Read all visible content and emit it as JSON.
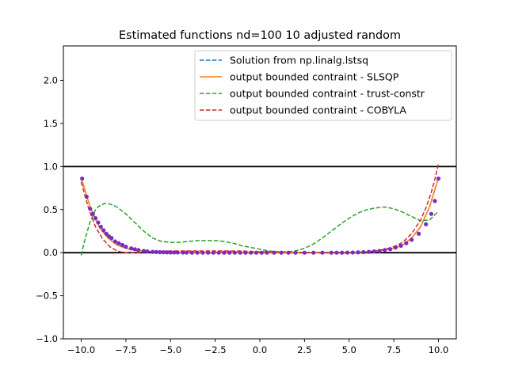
{
  "chart_data": {
    "type": "line",
    "title": "Estimated functions nd=100 10 adjusted random",
    "xlabel": "",
    "ylabel": "",
    "xlim": [
      -11.0,
      11.0
    ],
    "ylim": [
      -1.0,
      2.4
    ],
    "x_ticks": [
      -10.0,
      -7.5,
      -5.0,
      -2.5,
      0.0,
      2.5,
      5.0,
      7.5,
      10.0
    ],
    "x_tick_labels": [
      "−10.0",
      "−7.5",
      "−5.0",
      "−2.5",
      "0.0",
      "2.5",
      "5.0",
      "7.5",
      "10.0"
    ],
    "y_ticks": [
      -1.0,
      -0.5,
      0.0,
      0.5,
      1.0,
      1.5,
      2.0
    ],
    "y_tick_labels": [
      "−1.0",
      "−0.5",
      "0.0",
      "0.5",
      "1.0",
      "1.5",
      "2.0"
    ],
    "grid": false,
    "legend_position": "top-right",
    "reference_lines": [
      1.0,
      0.0
    ],
    "series": [
      {
        "name": "Solution from np.linalg.lstsq",
        "style": "dashed",
        "color": "#1f77b4",
        "x": [
          -10,
          -9.5,
          -9,
          -8.5,
          -8,
          -7.5,
          -7,
          -6.5,
          -6,
          -5,
          -4,
          -3,
          -2,
          -1,
          0,
          1,
          2,
          3,
          4,
          5,
          6,
          6.5,
          7,
          7.5,
          8,
          8.5,
          9,
          9.5,
          10
        ],
        "y": [
          0.87,
          0.53,
          0.3,
          0.17,
          0.09,
          0.05,
          0.03,
          0.02,
          0.01,
          0.0,
          0.0,
          0.0,
          0.0,
          0.0,
          0.0,
          0.0,
          0.0,
          0.0,
          0.0,
          0.0,
          0.01,
          0.02,
          0.03,
          0.05,
          0.09,
          0.17,
          0.3,
          0.53,
          0.87
        ]
      },
      {
        "name": "output bounded contraint - SLSQP",
        "style": "solid",
        "color": "#ff7f0e",
        "x": [
          -10,
          -9.5,
          -9,
          -8.5,
          -8,
          -7.5,
          -7,
          -6.5,
          -6,
          -5,
          -4,
          -3,
          -2,
          -1,
          0,
          1,
          2,
          3,
          4,
          5,
          6,
          6.5,
          7,
          7.5,
          8,
          8.5,
          9,
          9.5,
          10
        ],
        "y": [
          0.87,
          0.53,
          0.3,
          0.17,
          0.09,
          0.05,
          0.03,
          0.02,
          0.01,
          0.0,
          0.0,
          0.0,
          0.0,
          0.0,
          0.0,
          0.0,
          0.0,
          0.0,
          0.0,
          0.0,
          0.01,
          0.02,
          0.03,
          0.05,
          0.09,
          0.17,
          0.3,
          0.53,
          0.87
        ]
      },
      {
        "name": "output bounded contraint - trust-constr",
        "style": "dashed",
        "color": "#2ca02c",
        "x": [
          -10,
          -9.8,
          -9.5,
          -9.2,
          -9,
          -8.7,
          -8.5,
          -8.2,
          -8,
          -7.5,
          -7,
          -6.5,
          -6,
          -5.5,
          -5,
          -4.5,
          -4,
          -3.5,
          -3,
          -2.5,
          -2,
          -1.5,
          -1,
          -0.5,
          0,
          0.5,
          1,
          1.5,
          2,
          2.5,
          3,
          3.5,
          4,
          4.5,
          5,
          5.5,
          6,
          6.5,
          7,
          7.5,
          8,
          8.5,
          9,
          9.5,
          10
        ],
        "y": [
          -0.03,
          0.15,
          0.36,
          0.5,
          0.54,
          0.57,
          0.57,
          0.55,
          0.53,
          0.45,
          0.35,
          0.25,
          0.17,
          0.13,
          0.12,
          0.12,
          0.13,
          0.14,
          0.14,
          0.14,
          0.13,
          0.11,
          0.08,
          0.06,
          0.04,
          0.02,
          0.01,
          0.01,
          0.02,
          0.05,
          0.1,
          0.17,
          0.25,
          0.33,
          0.4,
          0.46,
          0.5,
          0.52,
          0.53,
          0.51,
          0.47,
          0.42,
          0.37,
          0.38,
          0.48
        ]
      },
      {
        "name": "output bounded contraint - COBYLA",
        "style": "dashed",
        "color": "#d62728",
        "x": [
          -10,
          -9.6,
          -9.2,
          -8.8,
          -8.4,
          -8,
          -7.6,
          -7.2,
          -6.8,
          -6.4,
          -6,
          -5,
          -4,
          -3,
          -2,
          -1,
          0,
          1,
          2,
          3,
          4,
          5,
          6,
          6.5,
          7,
          7.5,
          8,
          8.5,
          9,
          9.3,
          9.6,
          9.8,
          10
        ],
        "y": [
          0.82,
          0.52,
          0.3,
          0.16,
          0.07,
          0.02,
          0.0,
          0.0,
          0.0,
          0.01,
          0.01,
          0.02,
          0.02,
          0.02,
          0.02,
          0.02,
          0.01,
          0.01,
          0.0,
          0.0,
          0.0,
          0.0,
          0.01,
          0.02,
          0.04,
          0.07,
          0.12,
          0.22,
          0.38,
          0.52,
          0.7,
          0.85,
          1.03
        ]
      }
    ],
    "scatter": {
      "color": "#7b2cbf",
      "x": [
        -9.95,
        -9.7,
        -9.5,
        -9.35,
        -9.2,
        -9.05,
        -8.9,
        -8.75,
        -8.6,
        -8.45,
        -8.3,
        -8.1,
        -7.9,
        -7.7,
        -7.5,
        -7.2,
        -7.0,
        -6.8,
        -6.5,
        -6.3,
        -6.0,
        -5.8,
        -5.6,
        -5.4,
        -5.2,
        -5.0,
        -4.8,
        -4.6,
        -4.3,
        -4.1,
        -3.8,
        -3.5,
        -3.2,
        -2.9,
        -2.6,
        -2.3,
        -2.0,
        -1.7,
        -1.4,
        -1.1,
        -0.8,
        -0.5,
        -0.2,
        0.1,
        0.4,
        0.8,
        1.2,
        1.6,
        2.0,
        2.5,
        3.0,
        3.5,
        4.0,
        4.3,
        4.6,
        4.9,
        5.2,
        5.5,
        5.8,
        6.1,
        6.4,
        6.7,
        7.0,
        7.3,
        7.6,
        7.9,
        8.2,
        8.5,
        8.9,
        9.3,
        9.6,
        9.8,
        10.0
      ],
      "y": [
        0.86,
        0.65,
        0.51,
        0.45,
        0.4,
        0.35,
        0.3,
        0.26,
        0.22,
        0.19,
        0.17,
        0.13,
        0.11,
        0.09,
        0.07,
        0.05,
        0.04,
        0.03,
        0.02,
        0.015,
        0.01,
        0.008,
        0.006,
        0.005,
        0.004,
        0.003,
        0.002,
        0.002,
        0.001,
        0.001,
        0.0,
        0.0,
        0.0,
        0.0,
        0.0,
        0.0,
        0.0,
        0.0,
        0.0,
        0.0,
        0.0,
        0.0,
        0.0,
        0.0,
        0.0,
        0.0,
        0.0,
        0.0,
        0.0,
        0.0,
        0.0,
        0.0,
        0.0,
        0.0,
        0.0,
        0.001,
        0.002,
        0.004,
        0.006,
        0.01,
        0.015,
        0.02,
        0.03,
        0.04,
        0.06,
        0.08,
        0.11,
        0.15,
        0.22,
        0.33,
        0.45,
        0.6,
        0.86
      ]
    }
  }
}
